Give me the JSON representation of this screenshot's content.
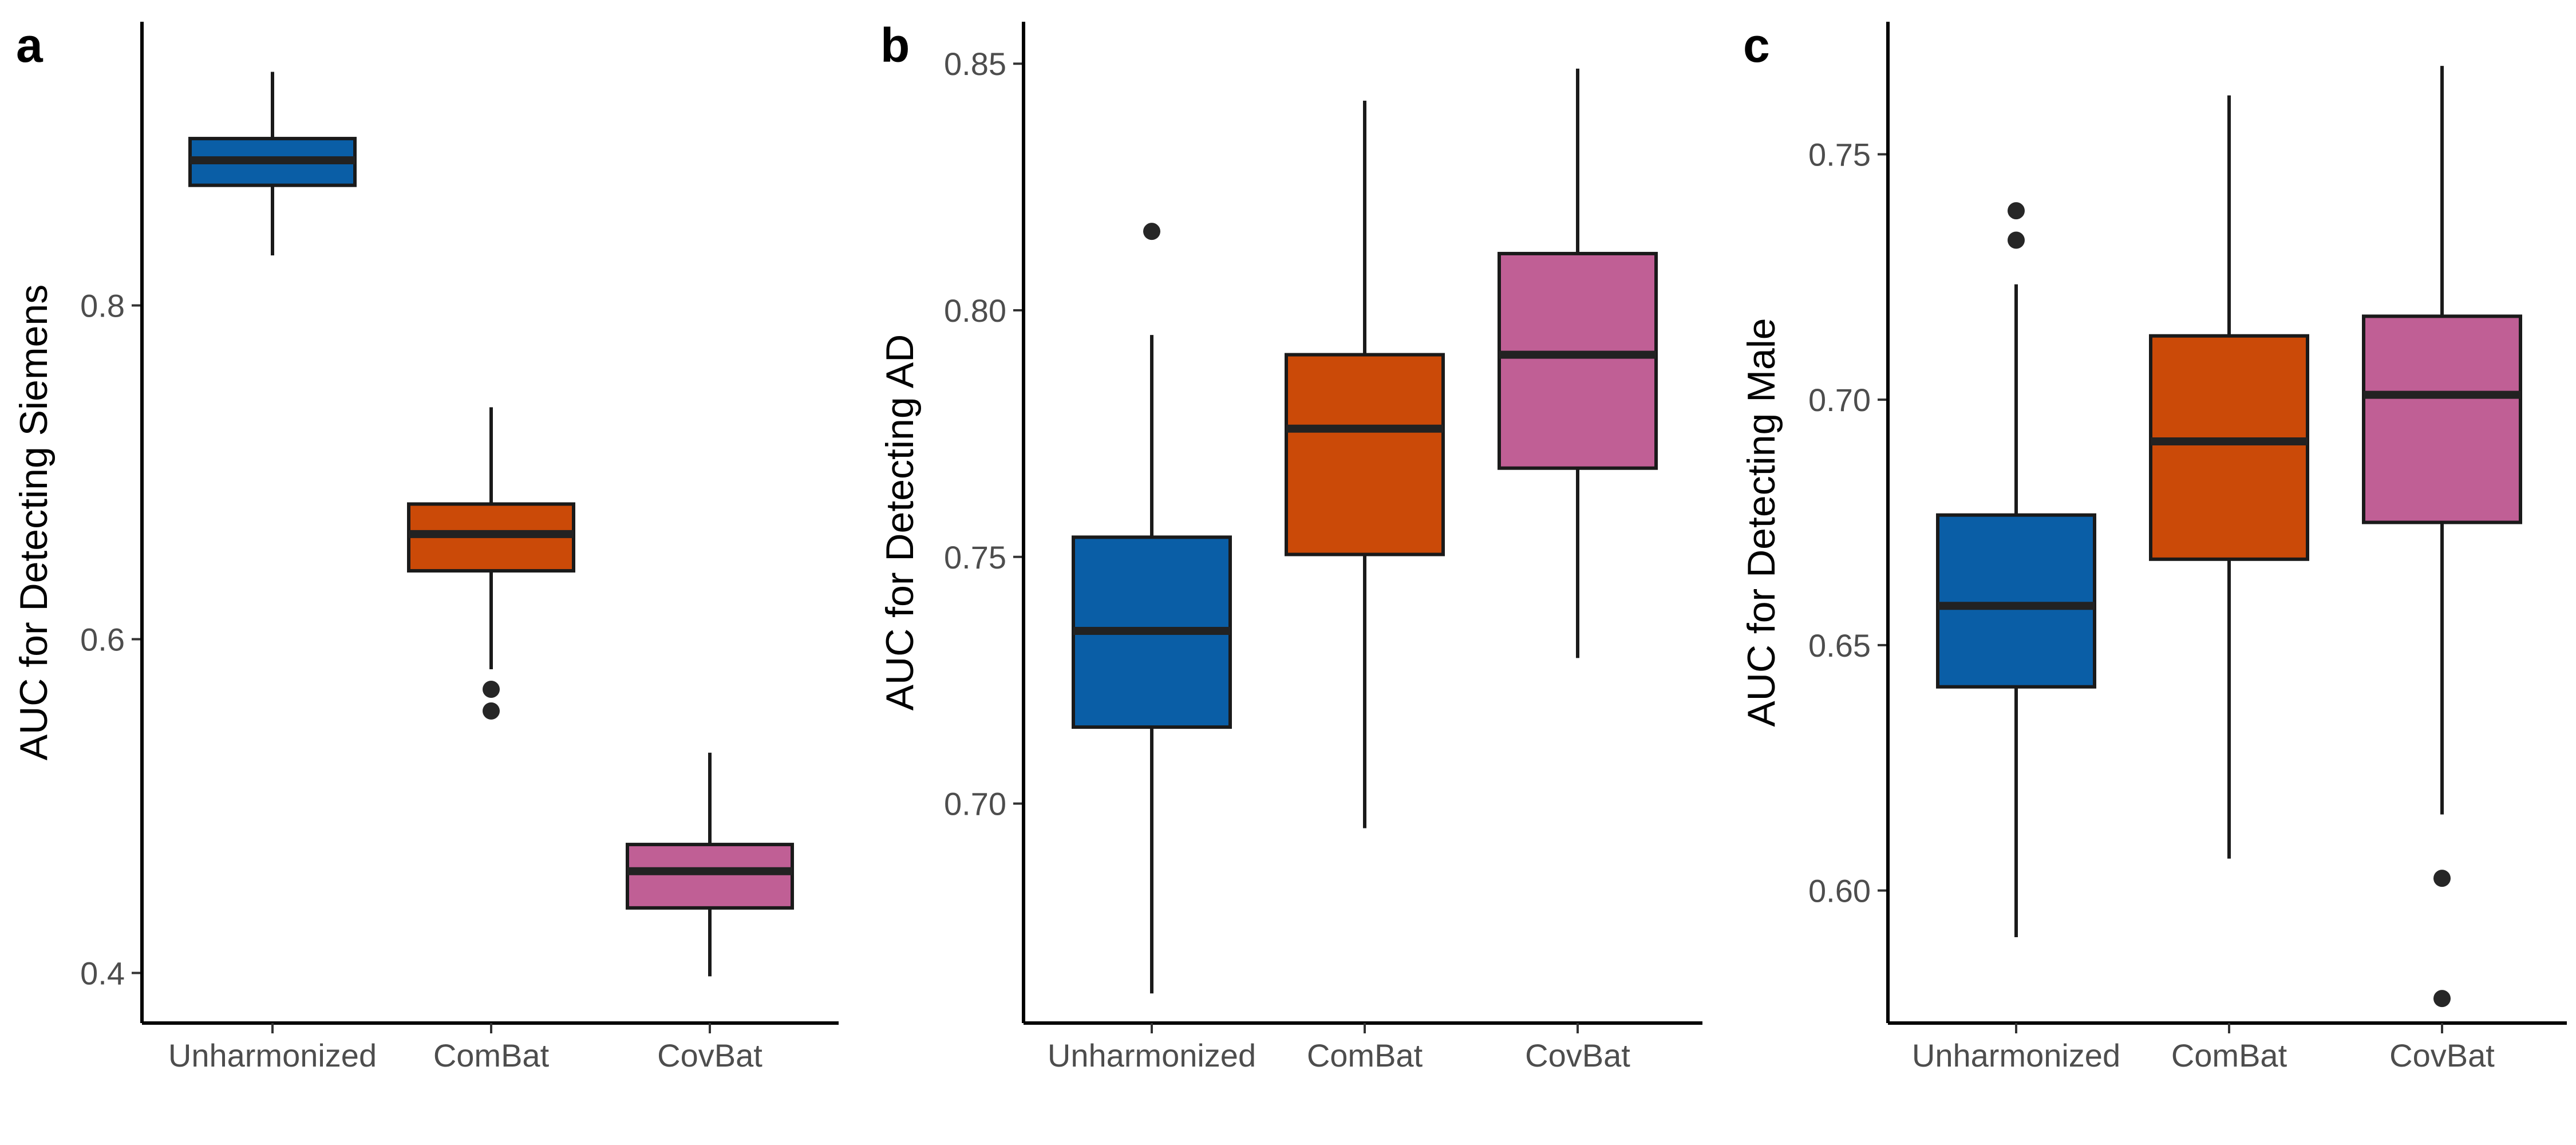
{
  "colors": {
    "Unharmonized": "#0a5ea6",
    "ComBat": "#cb4a08",
    "CovBat": "#c05f95"
  },
  "chart_data": [
    {
      "type": "box",
      "panel": "a",
      "ylabel": "AUC for Detecting Siemens",
      "categories": [
        "Unharmonized",
        "ComBat",
        "CovBat"
      ],
      "ylim": [
        0.37,
        0.97
      ],
      "yticks": [
        "0.4",
        "0.6",
        "0.8"
      ],
      "boxes": [
        {
          "name": "Unharmonized",
          "whisker_low": 0.83,
          "q1": 0.872,
          "median": 0.887,
          "q3": 0.9,
          "whisker_high": 0.94,
          "outliers": []
        },
        {
          "name": "ComBat",
          "whisker_low": 0.582,
          "q1": 0.641,
          "median": 0.663,
          "q3": 0.681,
          "whisker_high": 0.739,
          "outliers": [
            0.57,
            0.557
          ]
        },
        {
          "name": "CovBat",
          "whisker_low": 0.398,
          "q1": 0.439,
          "median": 0.461,
          "q3": 0.477,
          "whisker_high": 0.532,
          "outliers": []
        }
      ]
    },
    {
      "type": "box",
      "panel": "b",
      "ylabel": "AUC for Detecting AD",
      "categories": [
        "Unharmonized",
        "ComBat",
        "CovBat"
      ],
      "ylim": [
        0.6555,
        0.8585
      ],
      "yticks": [
        "0.70",
        "0.75",
        "0.80",
        "0.85"
      ],
      "boxes": [
        {
          "name": "Unharmonized",
          "whisker_low": 0.6615,
          "q1": 0.7155,
          "median": 0.735,
          "q3": 0.754,
          "whisker_high": 0.795,
          "outliers": [
            0.816
          ]
        },
        {
          "name": "ComBat",
          "whisker_low": 0.695,
          "q1": 0.7505,
          "median": 0.776,
          "q3": 0.791,
          "whisker_high": 0.8425,
          "outliers": []
        },
        {
          "name": "CovBat",
          "whisker_low": 0.7295,
          "q1": 0.768,
          "median": 0.791,
          "q3": 0.8115,
          "whisker_high": 0.849,
          "outliers": []
        }
      ]
    },
    {
      "type": "box",
      "panel": "c",
      "ylabel": "AUC for Detecting Male",
      "categories": [
        "Unharmonized",
        "ComBat",
        "CovBat"
      ],
      "ylim": [
        0.573,
        0.777
      ],
      "yticks": [
        "0.60",
        "0.65",
        "0.70",
        "0.75"
      ],
      "boxes": [
        {
          "name": "Unharmonized",
          "whisker_low": 0.5905,
          "q1": 0.6415,
          "median": 0.658,
          "q3": 0.6765,
          "whisker_high": 0.7235,
          "outliers": [
            0.7385,
            0.7325
          ]
        },
        {
          "name": "ComBat",
          "whisker_low": 0.6065,
          "q1": 0.6675,
          "median": 0.6915,
          "q3": 0.713,
          "whisker_high": 0.762,
          "outliers": []
        },
        {
          "name": "CovBat",
          "whisker_low": 0.6155,
          "q1": 0.675,
          "median": 0.701,
          "q3": 0.717,
          "whisker_high": 0.768,
          "outliers": [
            0.6025,
            0.578
          ]
        }
      ]
    }
  ]
}
